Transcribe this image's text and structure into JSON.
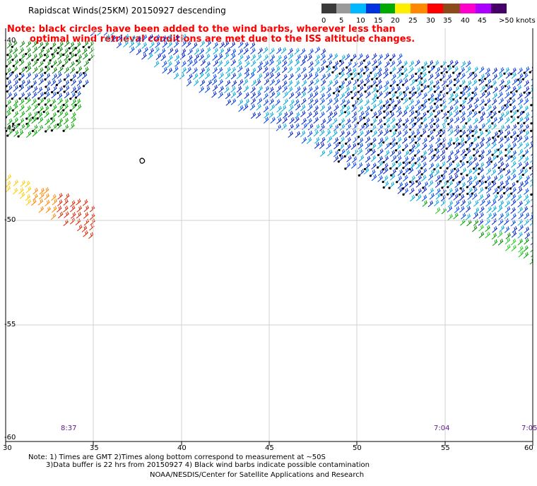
{
  "title": "Rapidscat Winds(25KM) 20150927 descending",
  "note_line1": "Note: black circles have been added to the wind barbs, wherever less than",
  "note_line2": "optimal wind retrieval conditions are met due to the ISS altitude changes.",
  "legend": {
    "labels": [
      "0",
      "5",
      "10",
      "15",
      "20",
      "25",
      "30",
      "35",
      "40",
      "45",
      ">50 knots"
    ],
    "colors": [
      "#3a3a3a",
      "#777777",
      "#b8b8b8",
      "#00b8ff",
      "#0066ff",
      "#0022cc",
      "#00cc00",
      "#008800",
      "#ffee00",
      "#ffaa00",
      "#ff6600",
      "#ff2200",
      "#cc0000",
      "#884400",
      "#ff00aa",
      "#aa00ff",
      "#550077"
    ]
  },
  "lat_labels": [
    "-40",
    "-45",
    "-50",
    "-55",
    "-60"
  ],
  "lon_labels": [
    "30",
    "35",
    "40",
    "45",
    "50",
    "55",
    "60"
  ],
  "time_labels": [
    "8:37",
    "7:04",
    "7:05"
  ],
  "footer": {
    "line1": "Note: 1) Times are GMT 2)Times along bottom correspond to measurement at ~50S",
    "line2": "3)Data buffer is 22 hrs from 20150927 4) Black wind barbs indicate possible contamination",
    "line3": "NOAA/NESDIS/Center for Satellite Applications and Research"
  }
}
